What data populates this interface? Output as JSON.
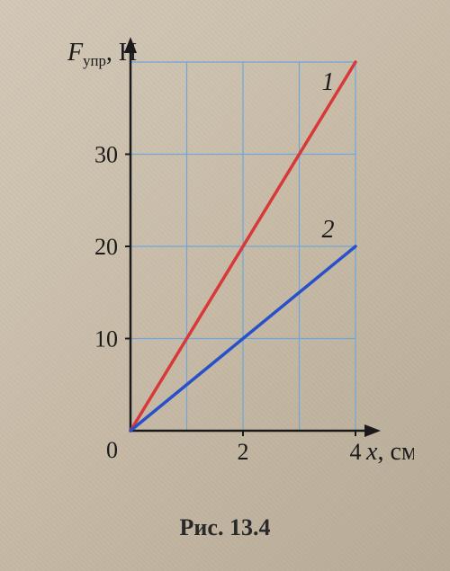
{
  "chart": {
    "type": "line",
    "y_axis_label": "F",
    "y_axis_subscript": "упр",
    "y_axis_unit": ", Н",
    "x_axis_label": "x",
    "x_axis_unit": ", см",
    "origin_label": "0",
    "xlim": [
      0,
      4
    ],
    "ylim": [
      0,
      40
    ],
    "x_ticks": [
      2,
      4
    ],
    "y_ticks": [
      10,
      20,
      30
    ],
    "x_grid_step": 1,
    "y_grid_step": 10,
    "grid_color": "#6fa8d8",
    "grid_width": 1.2,
    "axis_color": "#1a1a1a",
    "axis_width": 2.5,
    "background_color": "transparent",
    "tick_fontsize": 26,
    "label_fontsize": 28,
    "series": [
      {
        "name": "1",
        "label": "1",
        "color": "#d83838",
        "width": 3.5,
        "points": [
          [
            0,
            0
          ],
          [
            4,
            40
          ]
        ]
      },
      {
        "name": "2",
        "label": "2",
        "color": "#2850c8",
        "width": 3.5,
        "points": [
          [
            0,
            0
          ],
          [
            4,
            20
          ]
        ]
      }
    ],
    "series_label_fontsize": 28,
    "series_label_style": "italic"
  },
  "caption": "Рис. 13.4"
}
